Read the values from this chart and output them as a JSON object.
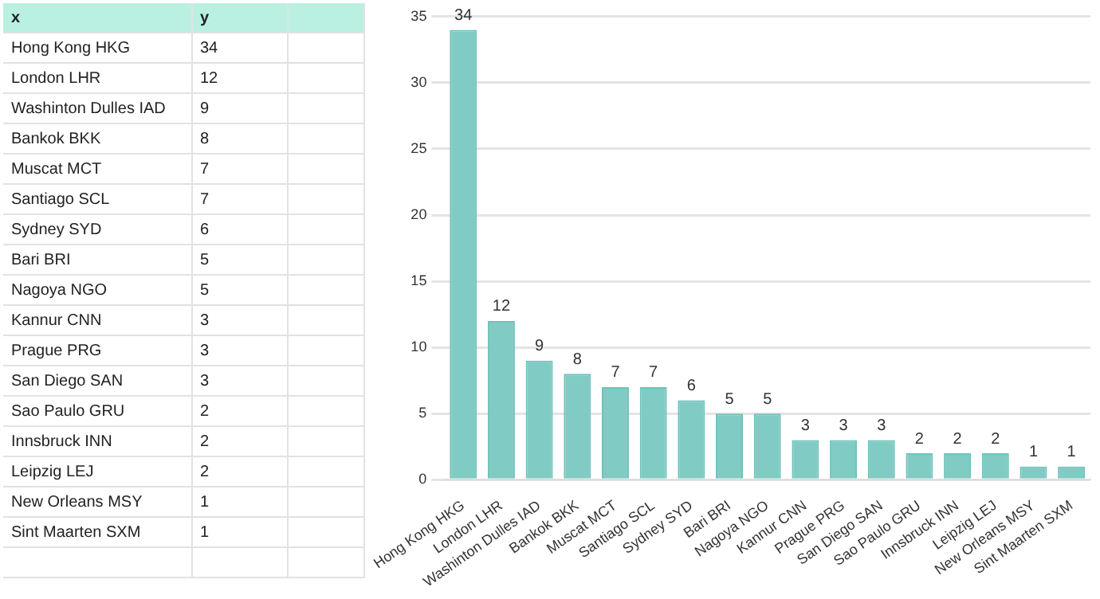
{
  "chart_data": [
    {
      "type": "other",
      "annotations": [
        "x",
        "y",
        "Hong Kong HKG",
        "34",
        "London LHR",
        "12",
        "Washinton Dulles IAD",
        "9",
        "Bankok BKK",
        "8",
        "Muscat MCT",
        "7",
        "Santiago SCL",
        "7",
        "Sydney SYD",
        "6",
        "Bari BRI",
        "5",
        "Nagoya NGO",
        "5",
        "Kannur CNN",
        "3",
        "Prague PRG",
        "3",
        "San Diego SAN",
        "3",
        "Sao Paulo GRU",
        "2",
        "Innsbruck INN",
        "2",
        "Leipzig LEJ",
        "2",
        "New Orleans MSY",
        "1",
        "Sint Maarten SXM",
        "1"
      ]
    },
    {
      "type": "bar",
      "categories": [
        "Hong Kong HKG",
        "London LHR",
        "Washinton Dulles IAD",
        "Bankok BKK",
        "Muscat MCT",
        "Santiago SCL",
        "Sydney SYD",
        "Bari BRI",
        "Nagoya NGO",
        "Kannur CNN",
        "Prague PRG",
        "San Diego SAN",
        "Sao Paulo GRU",
        "Innsbruck INN",
        "Leipzig LEJ",
        "New Orleans MSY",
        "Sint Maarten SXM"
      ],
      "values": [
        34,
        12,
        9,
        8,
        7,
        7,
        6,
        5,
        5,
        3,
        3,
        3,
        2,
        2,
        2,
        1,
        1
      ],
      "color": "#80cbc4",
      "ylim": [
        0,
        35
      ],
      "yticks": [
        0,
        5,
        10,
        15,
        20,
        25,
        30,
        35
      ],
      "grid": "y",
      "data_labels": true,
      "legend": false
    }
  ]
}
